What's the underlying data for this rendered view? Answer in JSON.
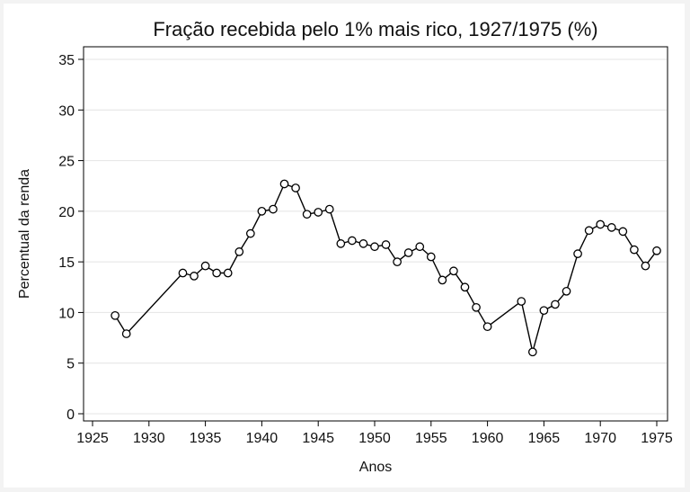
{
  "chart_data": {
    "type": "line",
    "title": "Fração recebida pelo 1% mais rico, 1927/1975 (%)",
    "xlabel": "Anos",
    "ylabel": "Percentual da renda",
    "xlim": [
      1925,
      1975
    ],
    "ylim": [
      0,
      35
    ],
    "xticks": [
      1925,
      1930,
      1935,
      1940,
      1945,
      1950,
      1955,
      1960,
      1965,
      1970,
      1975
    ],
    "yticks": [
      0,
      5,
      10,
      15,
      20,
      25,
      30,
      35
    ],
    "grid": true,
    "marker": "hollow-circle",
    "line_color": "#000000",
    "series": [
      {
        "x": [
          1927,
          1928,
          1933,
          1934,
          1935,
          1936,
          1937,
          1938,
          1939,
          1940,
          1941,
          1942,
          1943,
          1944,
          1945,
          1946,
          1947,
          1948,
          1949,
          1950,
          1951,
          1952,
          1953,
          1954,
          1955,
          1956,
          1957,
          1958,
          1959,
          1960,
          1963,
          1964,
          1965,
          1966,
          1967,
          1968,
          1969,
          1970,
          1971,
          1972,
          1973,
          1974,
          1975
        ],
        "values": [
          9.7,
          7.9,
          13.9,
          13.6,
          14.6,
          13.9,
          13.9,
          16.0,
          17.8,
          20.0,
          20.2,
          22.7,
          22.3,
          19.7,
          19.9,
          20.2,
          16.8,
          17.1,
          16.8,
          16.5,
          16.7,
          15.0,
          15.9,
          16.5,
          15.5,
          13.2,
          14.1,
          12.5,
          10.5,
          8.6,
          11.1,
          6.1,
          10.2,
          10.8,
          12.1,
          15.8,
          18.1,
          18.7,
          18.4,
          18.0,
          16.2,
          14.6,
          16.1
        ]
      }
    ]
  }
}
